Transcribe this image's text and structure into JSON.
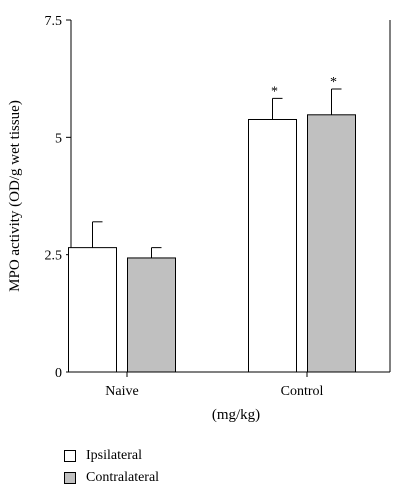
{
  "chart_data": {
    "type": "bar",
    "categories": [
      "Naive",
      "Control"
    ],
    "series": [
      {
        "name": "Ipsilateral",
        "values": [
          2.65,
          5.38
        ],
        "errors": [
          0.55,
          0.45
        ],
        "color": "#ffffff"
      },
      {
        "name": "Contralateral",
        "values": [
          2.43,
          5.48
        ],
        "errors": [
          0.22,
          0.55
        ],
        "color": "#c0c0c0"
      }
    ],
    "significance": [
      [
        false,
        true
      ],
      [
        false,
        true
      ]
    ],
    "significance_marker": "*",
    "ylabel": "MPO activity (OD/g wet tissue)",
    "xlabel": "(mg/kg)",
    "ylim": [
      0,
      7.5
    ],
    "yticks": [
      "0",
      "2.5",
      "5",
      "7.5"
    ],
    "grid": false,
    "legend_position": "bottom-left"
  }
}
